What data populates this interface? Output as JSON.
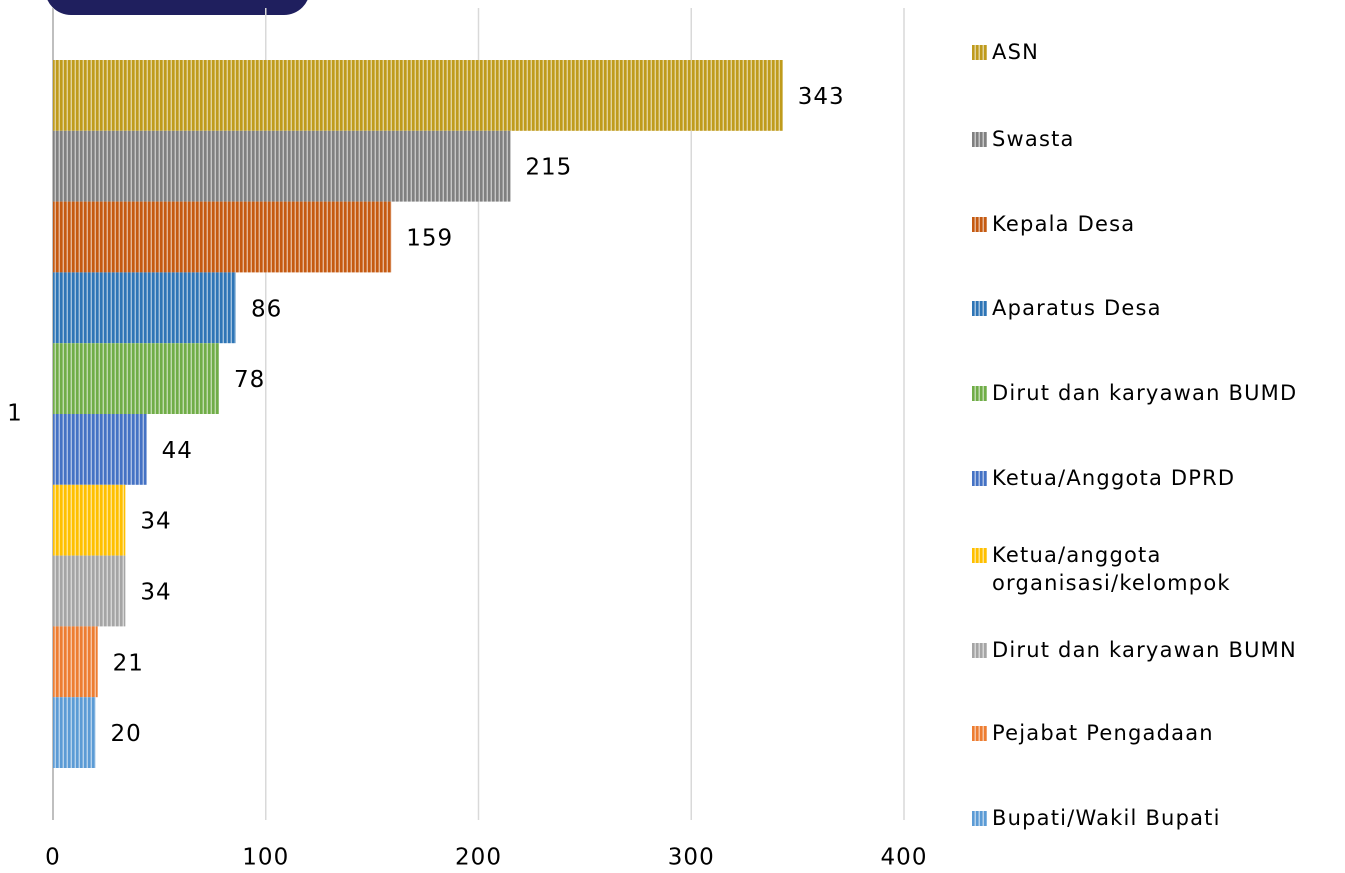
{
  "chart_data": {
    "type": "bar",
    "orientation": "horizontal",
    "categories": [
      "1"
    ],
    "series": [
      {
        "name": "ASN",
        "color": "#bf9b1c",
        "values": [
          343
        ]
      },
      {
        "name": "Swasta",
        "color": "#808080",
        "values": [
          215
        ]
      },
      {
        "name": "Kepala Desa",
        "color": "#c55a11",
        "values": [
          159
        ]
      },
      {
        "name": "Aparatus Desa",
        "color": "#2e75b6",
        "values": [
          86
        ]
      },
      {
        "name": "Dirut dan karyawan BUMD",
        "color": "#70ad47",
        "values": [
          78
        ]
      },
      {
        "name": "Ketua/Anggota DPRD",
        "color": "#4472c4",
        "values": [
          44
        ]
      },
      {
        "name": "Ketua/anggota organisasi/kelompok",
        "color": "#ffc000",
        "values": [
          34
        ]
      },
      {
        "name": "Dirut dan karyawan BUMN",
        "color": "#a5a5a5",
        "values": [
          34
        ]
      },
      {
        "name": "Pejabat Pengadaan",
        "color": "#ed7d31",
        "values": [
          21
        ]
      },
      {
        "name": "Bupati/Wakil Bupati",
        "color": "#5b9bd5",
        "values": [
          20
        ]
      }
    ],
    "xlim": [
      0,
      400
    ],
    "xticks": [
      0,
      100,
      200,
      300,
      400
    ],
    "grid": true,
    "legend": "right"
  }
}
